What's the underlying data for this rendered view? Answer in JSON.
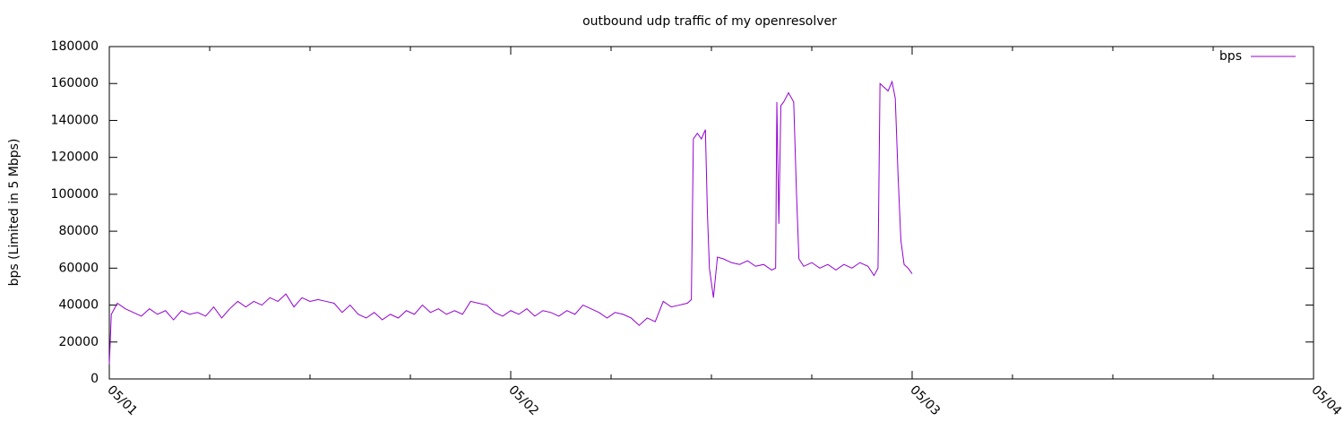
{
  "chart_data": {
    "type": "line",
    "title": "outbound udp traffic of my openresolver",
    "y_label": "bps (Limited in 5 Mbps)",
    "x": [
      0,
      0.005,
      0.02,
      0.04,
      0.06,
      0.08,
      0.1,
      0.12,
      0.14,
      0.16,
      0.18,
      0.2,
      0.22,
      0.24,
      0.26,
      0.28,
      0.3,
      0.32,
      0.34,
      0.36,
      0.38,
      0.4,
      0.42,
      0.44,
      0.46,
      0.48,
      0.5,
      0.52,
      0.54,
      0.56,
      0.58,
      0.6,
      0.62,
      0.64,
      0.66,
      0.68,
      0.7,
      0.72,
      0.74,
      0.76,
      0.78,
      0.8,
      0.82,
      0.84,
      0.86,
      0.88,
      0.9,
      0.92,
      0.94,
      0.96,
      0.98,
      1.0,
      1.02,
      1.04,
      1.06,
      1.08,
      1.1,
      1.12,
      1.14,
      1.16,
      1.18,
      1.2,
      1.22,
      1.24,
      1.26,
      1.28,
      1.3,
      1.32,
      1.34,
      1.36,
      1.38,
      1.4,
      1.42,
      1.44,
      1.45,
      1.455,
      1.465,
      1.475,
      1.485,
      1.49,
      1.495,
      1.505,
      1.515,
      1.53,
      1.55,
      1.57,
      1.59,
      1.61,
      1.63,
      1.65,
      1.66,
      1.663,
      1.668,
      1.673,
      1.68,
      1.692,
      1.705,
      1.712,
      1.718,
      1.73,
      1.75,
      1.77,
      1.79,
      1.81,
      1.83,
      1.85,
      1.87,
      1.89,
      1.905,
      1.915,
      1.92,
      1.93,
      1.94,
      1.95,
      1.958,
      1.965,
      1.972,
      1.98,
      1.99,
      2.0
    ],
    "series": [
      {
        "name": "bps",
        "color": "#9400d3",
        "values": [
          8000,
          35000,
          41000,
          38000,
          36000,
          34000,
          38000,
          35000,
          37000,
          32000,
          37000,
          35000,
          36000,
          34000,
          39000,
          33000,
          38000,
          42000,
          39000,
          42000,
          40000,
          44000,
          42000,
          46000,
          39000,
          44000,
          42000,
          43000,
          42000,
          41000,
          36000,
          40000,
          35000,
          33000,
          36000,
          32000,
          35000,
          33000,
          37000,
          35000,
          40000,
          36000,
          38000,
          35000,
          37000,
          35000,
          42000,
          41000,
          40000,
          36000,
          34000,
          37000,
          35000,
          38000,
          34000,
          37000,
          36000,
          34000,
          37000,
          35000,
          40000,
          38000,
          36000,
          33000,
          36000,
          35000,
          33000,
          29000,
          33000,
          31000,
          42000,
          39000,
          40000,
          41000,
          43000,
          130000,
          133000,
          130000,
          135000,
          90000,
          60000,
          44000,
          66000,
          65000,
          63000,
          62000,
          64000,
          61000,
          62000,
          59000,
          60000,
          150000,
          84000,
          148000,
          150000,
          155000,
          150000,
          100000,
          65000,
          61000,
          63000,
          60000,
          62000,
          59000,
          62000,
          60000,
          63000,
          61000,
          56000,
          60000,
          160000,
          158000,
          156000,
          161000,
          152000,
          110000,
          75000,
          62000,
          60000,
          57000
        ]
      }
    ],
    "xlim": [
      0,
      3
    ],
    "xticks": [
      {
        "value": 0,
        "label": "05/01"
      },
      {
        "value": 1,
        "label": "05/02"
      },
      {
        "value": 2,
        "label": "05/03"
      },
      {
        "value": 3,
        "label": "05/04"
      }
    ],
    "xminorticks": [
      0.25,
      0.5,
      0.75,
      1.25,
      1.5,
      1.75,
      2.25,
      2.5,
      2.75
    ],
    "ylim": [
      0,
      180000
    ],
    "yticks": [
      0,
      20000,
      40000,
      60000,
      80000,
      100000,
      120000,
      140000,
      160000,
      180000
    ],
    "legend": "top-right"
  }
}
